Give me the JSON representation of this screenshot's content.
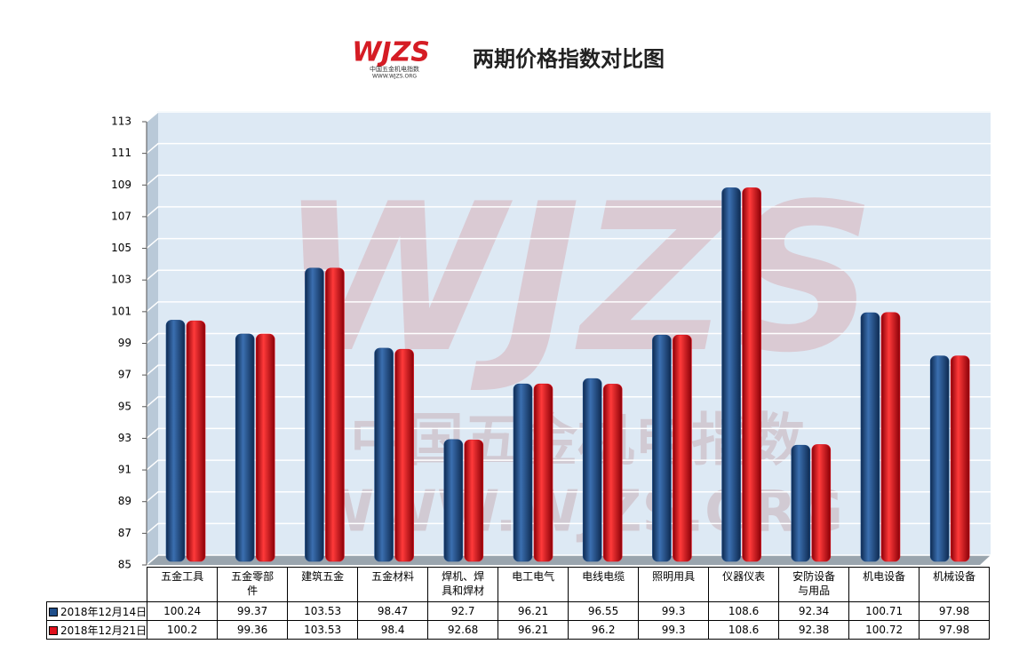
{
  "chart_data": {
    "type": "bar",
    "title": "两期价格指数对比图",
    "logo": {
      "text": "WJZS",
      "subtitle": "中国五金机电指数",
      "url": "WWW.WJZS.ORG"
    },
    "categories": [
      "五金工具",
      "五金零部件",
      "建筑五金",
      "五金材料",
      "焊机、焊具和焊材",
      "电工电气",
      "电线电缆",
      "照明用具",
      "仪器仪表",
      "安防设备与用品",
      "机电设备",
      "机械设备"
    ],
    "series": [
      {
        "name": "2018年12月14日",
        "color": "#1f4e8a",
        "values": [
          100.24,
          99.37,
          103.53,
          98.47,
          92.7,
          96.21,
          96.55,
          99.3,
          108.6,
          92.34,
          100.71,
          97.98
        ]
      },
      {
        "name": "2018年12月21日",
        "color": "#e0101c",
        "values": [
          100.2,
          99.36,
          103.53,
          98.4,
          92.68,
          96.21,
          96.2,
          99.3,
          108.6,
          92.38,
          100.72,
          97.98
        ]
      }
    ],
    "ylim": [
      85,
      113
    ],
    "yticks": [
      85,
      87,
      89,
      91,
      93,
      95,
      97,
      99,
      101,
      103,
      105,
      107,
      109,
      111,
      113
    ],
    "grid": true
  }
}
